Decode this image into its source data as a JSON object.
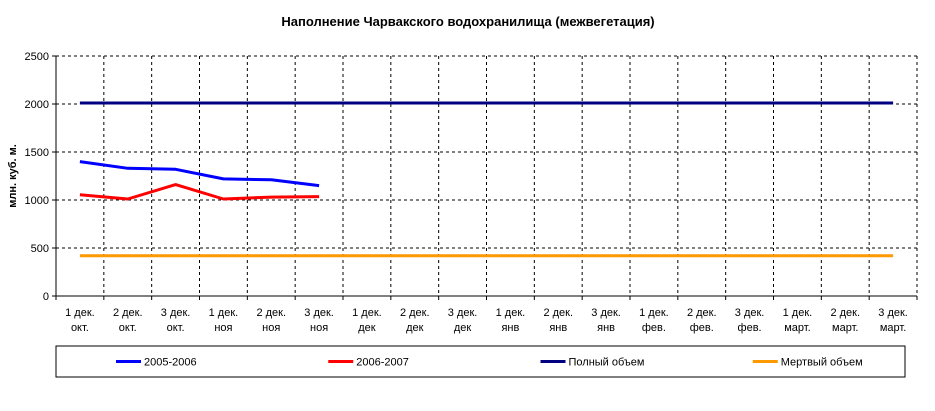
{
  "chart_data": {
    "type": "line",
    "title": "Наполнение Чарвакского водохранилища  (межвегетация)",
    "ylabel": "млн. куб. м.",
    "xlabel": "",
    "ylim": [
      0,
      2500
    ],
    "yticks": [
      0,
      500,
      1000,
      1500,
      2000,
      2500
    ],
    "grid": true,
    "legend_position": "bottom",
    "categories": [
      [
        "1 дек.",
        "окт."
      ],
      [
        "2 дек.",
        "окт."
      ],
      [
        "3 дек.",
        "окт."
      ],
      [
        "1 дек.",
        "ноя"
      ],
      [
        "2 дек.",
        "ноя"
      ],
      [
        "3 дек.",
        "ноя"
      ],
      [
        "1 дек.",
        "дек"
      ],
      [
        "2 дек.",
        "дек"
      ],
      [
        "3 дек.",
        "дек"
      ],
      [
        "1 дек.",
        "янв"
      ],
      [
        "2 дек.",
        "янв"
      ],
      [
        "3 дек.",
        "янв"
      ],
      [
        "1 дек.",
        "фев."
      ],
      [
        "2 дек.",
        "фев."
      ],
      [
        "3 дек.",
        "фев."
      ],
      [
        "1 дек.",
        "март."
      ],
      [
        "2 дек.",
        "март."
      ],
      [
        "3 дек.",
        "март."
      ]
    ],
    "series": [
      {
        "name": "2005-2006",
        "color": "#0000ff",
        "values": [
          1400,
          1330,
          1320,
          1220,
          1210,
          1150,
          null,
          null,
          null,
          null,
          null,
          null,
          null,
          null,
          null,
          null,
          null,
          null
        ]
      },
      {
        "name": "2006-2007",
        "color": "#ff0000",
        "values": [
          1055,
          1010,
          1160,
          1010,
          1030,
          1035,
          null,
          null,
          null,
          null,
          null,
          null,
          null,
          null,
          null,
          null,
          null,
          null
        ]
      },
      {
        "name": "Полный объем",
        "color": "#000080",
        "values": [
          2010,
          2010,
          2010,
          2010,
          2010,
          2010,
          2010,
          2010,
          2010,
          2010,
          2010,
          2010,
          2010,
          2010,
          2010,
          2010,
          2010,
          2010
        ]
      },
      {
        "name": "Мертвый объем",
        "color": "#ff9900",
        "values": [
          420,
          420,
          420,
          420,
          420,
          420,
          420,
          420,
          420,
          420,
          420,
          420,
          420,
          420,
          420,
          420,
          420,
          420
        ]
      }
    ]
  }
}
